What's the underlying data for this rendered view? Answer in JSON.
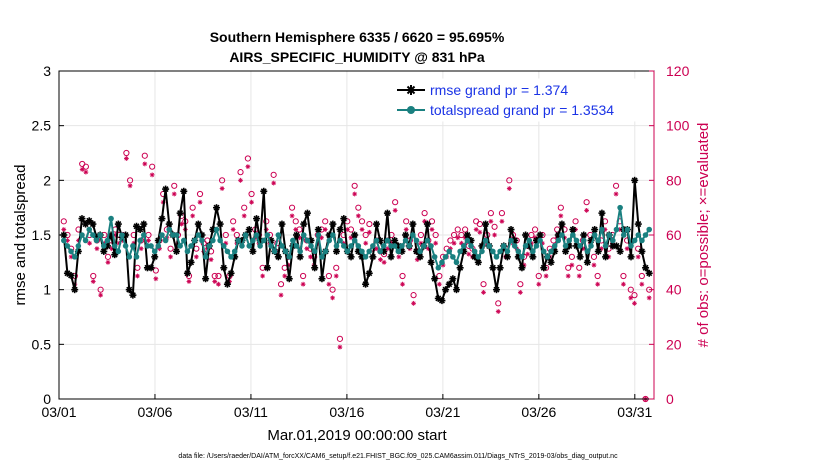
{
  "chart_data": {
    "type": "line",
    "title": "Southern Hemisphere 6335 / 6620 = 95.695%",
    "subtitle": "AIRS_SPECIFIC_HUMIDITY @ 831 hPa",
    "xlabel": "Mar.01,2019 00:00:00 start",
    "ylabel": "rmse and totalspread",
    "y2label": "# of obs: o=possible; ×=evaluated",
    "footer": "data file: /Users/raeder/DAI/ATM_forcXX/CAM6_setup/f.e21.FHIST_BGC.f09_025.CAM6assim.011/Diags_NTrS_2019-03/obs_diag_output.nc",
    "x_ticks": [
      "03/01",
      "03/06",
      "03/11",
      "03/16",
      "03/21",
      "03/26",
      "03/31"
    ],
    "x_tick_days": [
      1,
      6,
      11,
      16,
      21,
      26,
      31
    ],
    "xlim": [
      1,
      32
    ],
    "ylim": [
      0,
      3
    ],
    "y_ticks": [
      "0",
      "0.5",
      "1",
      "1.5",
      "2",
      "2.5",
      "3"
    ],
    "y2lim": [
      0,
      120
    ],
    "y2_ticks": [
      "0",
      "20",
      "40",
      "60",
      "80",
      "100",
      "120"
    ],
    "grid": true,
    "legend_position": "top-right",
    "colors": {
      "rmse": "#000000",
      "spread": "#1a8080",
      "obs": "#cc0052",
      "legend_text": "#1a33e6"
    },
    "series": [
      {
        "name": "rmse grand pr = 1.374",
        "key": "rmse",
        "values": [
          1.5,
          1.15,
          1.13,
          1.0,
          1.35,
          1.65,
          1.6,
          1.63,
          1.6,
          1.48,
          1.5,
          1.35,
          1.4,
          1.5,
          1.32,
          1.6,
          1.48,
          1.5,
          1.0,
          0.95,
          1.58,
          1.55,
          1.6,
          1.2,
          1.2,
          1.3,
          1.45,
          1.65,
          1.92,
          1.6,
          1.5,
          1.35,
          1.7,
          1.9,
          1.15,
          1.25,
          1.45,
          1.6,
          1.5,
          1.1,
          1.4,
          1.55,
          1.75,
          1.6,
          1.2,
          1.05,
          1.15,
          1.3,
          1.45,
          1.45,
          1.5,
          1.55,
          1.35,
          1.65,
          1.45,
          1.9,
          1.2,
          1.45,
          1.35,
          1.3,
          1.6,
          1.35,
          1.1,
          1.4,
          1.5,
          1.3,
          1.6,
          1.7,
          1.45,
          1.2,
          1.55,
          1.1,
          1.35,
          1.5,
          1.6,
          1.35,
          1.55,
          1.65,
          1.35,
          1.3,
          1.5,
          1.35,
          1.3,
          1.05,
          1.15,
          1.3,
          1.6,
          1.45,
          1.35,
          1.7,
          1.3,
          1.45,
          1.4,
          1.35,
          1.5,
          1.4,
          1.6,
          1.35,
          1.3,
          1.4,
          1.6,
          1.25,
          1.1,
          0.92,
          0.9,
          1.0,
          1.05,
          1.1,
          1.0,
          1.2,
          1.35,
          1.5,
          1.45,
          1.3,
          1.25,
          1.4,
          1.6,
          1.4,
          1.2,
          1.0,
          1.2,
          1.4,
          1.3,
          1.55,
          1.45,
          1.3,
          1.2,
          1.5,
          1.4,
          1.3,
          1.45,
          1.5,
          1.2,
          1.3,
          1.25,
          1.35,
          1.5,
          1.6,
          1.35,
          1.4,
          1.55,
          1.4,
          1.3,
          1.5,
          1.25,
          1.45,
          1.55,
          1.35,
          1.7,
          1.3,
          1.5,
          1.4,
          1.4,
          1.35,
          1.55,
          1.55,
          1.3,
          2.0,
          1.6,
          1.35,
          1.2,
          1.15
        ]
      },
      {
        "name": "totalspread grand pr = 1.3534",
        "key": "spread",
        "values": [
          1.45,
          1.4,
          1.35,
          1.3,
          1.4,
          1.5,
          1.45,
          1.55,
          1.5,
          1.45,
          1.5,
          1.4,
          1.45,
          1.65,
          1.4,
          1.35,
          1.5,
          1.4,
          1.3,
          1.4,
          1.3,
          1.45,
          1.5,
          1.4,
          1.4,
          1.35,
          1.4,
          1.5,
          1.45,
          1.55,
          1.5,
          1.5,
          1.4,
          1.45,
          1.35,
          1.4,
          1.45,
          1.5,
          1.45,
          1.3,
          1.4,
          1.45,
          1.55,
          1.45,
          1.4,
          1.35,
          1.3,
          1.35,
          1.45,
          1.4,
          1.5,
          1.4,
          1.45,
          1.5,
          1.4,
          1.45,
          1.5,
          1.4,
          1.35,
          1.5,
          1.4,
          1.35,
          1.3,
          1.45,
          1.4,
          1.35,
          1.5,
          1.45,
          1.4,
          1.35,
          1.5,
          1.3,
          1.35,
          1.45,
          1.5,
          1.4,
          1.45,
          1.4,
          1.35,
          1.4,
          1.45,
          1.4,
          1.35,
          1.3,
          1.35,
          1.4,
          1.45,
          1.35,
          1.4,
          1.45,
          1.4,
          1.4,
          1.35,
          1.4,
          1.45,
          1.4,
          1.5,
          1.45,
          1.35,
          1.4,
          1.45,
          1.4,
          1.3,
          1.2,
          1.25,
          1.3,
          1.35,
          1.3,
          1.25,
          1.35,
          1.4,
          1.45,
          1.4,
          1.35,
          1.3,
          1.35,
          1.45,
          1.4,
          1.35,
          1.3,
          1.35,
          1.4,
          1.35,
          1.45,
          1.4,
          1.35,
          1.3,
          1.4,
          1.45,
          1.35,
          1.4,
          1.45,
          1.35,
          1.3,
          1.35,
          1.4,
          1.45,
          1.5,
          1.4,
          1.45,
          1.5,
          1.45,
          1.4,
          1.45,
          1.35,
          1.4,
          1.5,
          1.45,
          1.55,
          1.4,
          1.5,
          1.45,
          1.55,
          1.75,
          1.5,
          1.55,
          1.4,
          1.45,
          1.5,
          1.45,
          1.5,
          1.55
        ]
      }
    ],
    "obs_possible": [
      65,
      60,
      55,
      45,
      62,
      86,
      85,
      60,
      45,
      58,
      40,
      60,
      52,
      58,
      62,
      60,
      60,
      90,
      80,
      60,
      48,
      58,
      89,
      60,
      85,
      47,
      58,
      75,
      62,
      55,
      78,
      60,
      67,
      65,
      45,
      70,
      55,
      75,
      57,
      58,
      54,
      45,
      45,
      80,
      60,
      45,
      65,
      60,
      83,
      70,
      88,
      75,
      62,
      60,
      48,
      65,
      60,
      82,
      57,
      42,
      48,
      52,
      70,
      65,
      62,
      45,
      58,
      55,
      52,
      60,
      62,
      65,
      45,
      40,
      48,
      22,
      60,
      65,
      62,
      78,
      70,
      65,
      60,
      64,
      55,
      58,
      54,
      53,
      58,
      60,
      72,
      55,
      45,
      65,
      58,
      38,
      54,
      60,
      68,
      58,
      65,
      60,
      45,
      52,
      55,
      58,
      60,
      62,
      60,
      62,
      56,
      55,
      65,
      64,
      42,
      60,
      68,
      63,
      35,
      68,
      55,
      80,
      60,
      58,
      42,
      52,
      56,
      60,
      62,
      45,
      60,
      48,
      55,
      58,
      62,
      70,
      62,
      48,
      52,
      65,
      48,
      58,
      72,
      60,
      52,
      45,
      58,
      65,
      55,
      60,
      78,
      65,
      45,
      58,
      40,
      38,
      55,
      45,
      0,
      40
    ],
    "obs_evaluated": [
      62,
      58,
      52,
      42,
      58,
      84,
      83,
      57,
      43,
      55,
      38,
      57,
      50,
      55,
      60,
      57,
      58,
      88,
      78,
      57,
      45,
      55,
      86,
      58,
      82,
      44,
      55,
      72,
      59,
      52,
      75,
      57,
      64,
      62,
      43,
      67,
      52,
      72,
      54,
      55,
      51,
      43,
      42,
      77,
      57,
      43,
      62,
      57,
      80,
      67,
      85,
      72,
      59,
      57,
      45,
      62,
      57,
      79,
      54,
      38,
      45,
      49,
      67,
      62,
      59,
      42,
      55,
      52,
      49,
      57,
      59,
      62,
      42,
      37,
      45,
      19,
      57,
      62,
      59,
      75,
      67,
      62,
      57,
      61,
      52,
      55,
      51,
      50,
      55,
      57,
      69,
      52,
      42,
      62,
      55,
      35,
      51,
      57,
      65,
      55,
      62,
      57,
      42,
      49,
      52,
      55,
      57,
      59,
      57,
      59,
      53,
      52,
      62,
      61,
      39,
      57,
      65,
      60,
      32,
      65,
      52,
      77,
      57,
      55,
      39,
      49,
      53,
      57,
      59,
      42,
      57,
      45,
      52,
      55,
      59,
      67,
      59,
      45,
      49,
      62,
      45,
      55,
      69,
      57,
      49,
      42,
      55,
      62,
      52,
      57,
      75,
      62,
      42,
      55,
      37,
      35,
      52,
      42,
      0,
      37
    ]
  }
}
